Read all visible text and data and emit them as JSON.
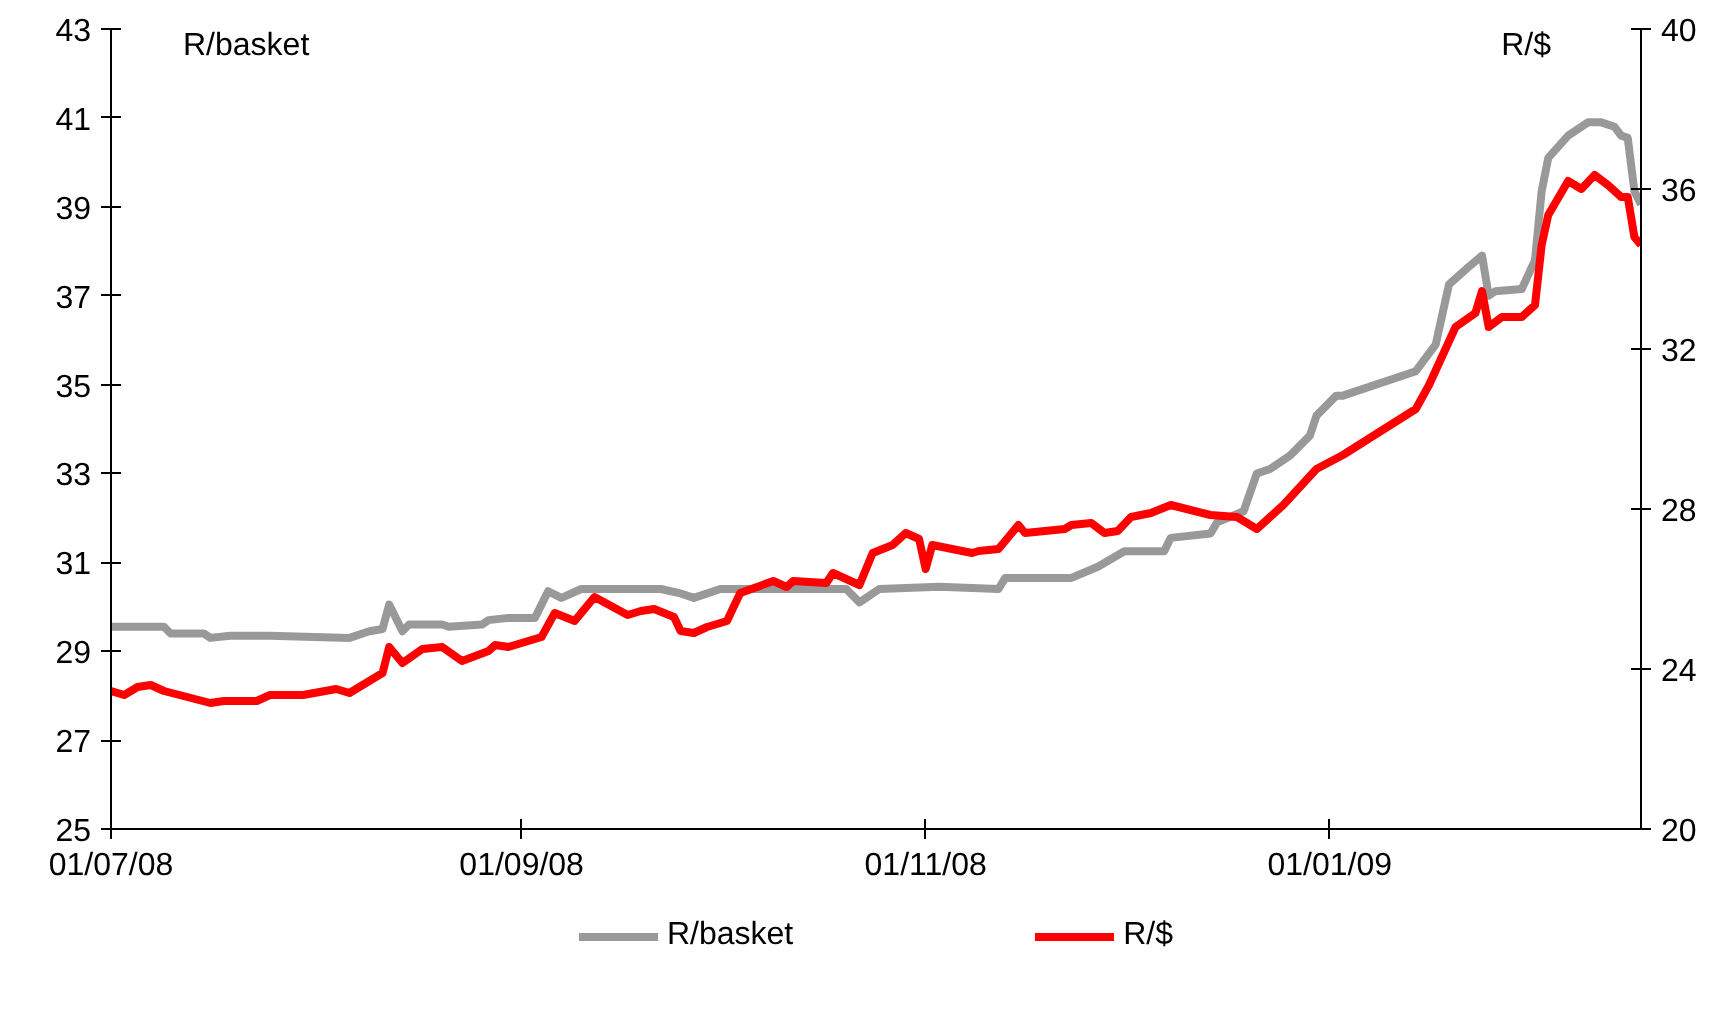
{
  "chart_data": {
    "type": "line",
    "ylabel": "R/basket",
    "y2label": "R/$",
    "xlim": [
      "2008-07-01",
      "2009-02-17"
    ],
    "xticks": [
      {
        "value": "2008-07-01",
        "label": "01/07/08"
      },
      {
        "value": "2008-09-01",
        "label": "01/09/08"
      },
      {
        "value": "2008-11-01",
        "label": "01/11/08"
      },
      {
        "value": "2009-01-01",
        "label": "01/01/09"
      }
    ],
    "ylim": [
      25,
      43
    ],
    "yticks": [
      25,
      27,
      29,
      31,
      33,
      35,
      37,
      39,
      41,
      43
    ],
    "y2lim": [
      20,
      40
    ],
    "y2ticks": [
      20,
      24,
      28,
      32,
      36,
      40
    ],
    "grid": false,
    "legend": "bottom",
    "marker": "none",
    "line_style": "solid",
    "series": [
      {
        "name": "R/basket",
        "color": "#999999",
        "x": [
          "2008-07-01",
          "2008-07-09",
          "2008-07-10",
          "2008-07-15",
          "2008-07-16",
          "2008-07-19",
          "2008-07-25",
          "2008-08-06",
          "2008-08-09",
          "2008-08-11",
          "2008-08-12",
          "2008-08-14",
          "2008-08-15",
          "2008-08-20",
          "2008-08-21",
          "2008-08-26",
          "2008-08-27",
          "2008-08-30",
          "2008-09-03",
          "2008-09-05",
          "2008-09-07",
          "2008-09-10",
          "2008-09-22",
          "2008-09-25",
          "2008-09-27",
          "2008-10-01",
          "2008-10-20",
          "2008-10-22",
          "2008-10-25",
          "2008-11-03",
          "2008-11-12",
          "2008-11-13",
          "2008-11-23",
          "2008-11-27",
          "2008-12-01",
          "2008-12-07",
          "2008-12-08",
          "2008-12-14",
          "2008-12-15",
          "2008-12-19",
          "2008-12-21",
          "2008-12-23",
          "2008-12-26",
          "2008-12-29",
          "2008-12-30",
          "2009-01-02",
          "2009-01-03",
          "2009-01-14",
          "2009-01-16",
          "2009-01-17",
          "2009-01-19",
          "2009-01-22",
          "2009-01-24",
          "2009-01-25",
          "2009-01-26",
          "2009-01-30",
          "2009-02-01",
          "2009-02-02",
          "2009-02-03",
          "2009-02-06",
          "2009-02-09",
          "2009-02-11",
          "2009-02-13",
          "2009-02-14",
          "2009-02-15",
          "2009-02-16",
          "2009-02-17"
        ],
        "values": [
          29.55,
          29.55,
          29.4,
          29.4,
          29.3,
          29.35,
          29.35,
          29.3,
          29.45,
          29.5,
          30.05,
          29.45,
          29.6,
          29.6,
          29.55,
          29.6,
          29.7,
          29.75,
          29.75,
          30.35,
          30.2,
          30.4,
          30.4,
          30.3,
          30.2,
          30.4,
          30.4,
          30.1,
          30.4,
          30.45,
          30.4,
          30.65,
          30.65,
          30.9,
          31.25,
          31.25,
          31.55,
          31.65,
          31.9,
          32.15,
          33.0,
          33.1,
          33.4,
          33.85,
          34.3,
          34.75,
          34.75,
          35.3,
          35.7,
          35.9,
          37.25,
          37.65,
          37.9,
          37.0,
          37.1,
          37.15,
          37.8,
          39.35,
          40.1,
          40.6,
          40.9,
          40.9,
          40.8,
          40.6,
          40.55,
          39.35,
          39.05
        ]
      },
      {
        "name": "R/$",
        "color": "#ff0000",
        "axis": "y2",
        "x": [
          "2008-07-01",
          "2008-07-03",
          "2008-07-05",
          "2008-07-07",
          "2008-07-09",
          "2008-07-16",
          "2008-07-18",
          "2008-07-23",
          "2008-07-25",
          "2008-07-30",
          "2008-08-04",
          "2008-08-06",
          "2008-08-09",
          "2008-08-11",
          "2008-08-12",
          "2008-08-14",
          "2008-08-17",
          "2008-08-20",
          "2008-08-23",
          "2008-08-27",
          "2008-08-28",
          "2008-08-30",
          "2008-09-04",
          "2008-09-06",
          "2008-09-09",
          "2008-09-12",
          "2008-09-17",
          "2008-09-19",
          "2008-09-21",
          "2008-09-24",
          "2008-09-25",
          "2008-09-27",
          "2008-09-29",
          "2008-10-02",
          "2008-10-04",
          "2008-10-09",
          "2008-10-11",
          "2008-10-12",
          "2008-10-17",
          "2008-10-18",
          "2008-10-22",
          "2008-10-24",
          "2008-10-27",
          "2008-10-29",
          "2008-10-31",
          "2008-11-01",
          "2008-11-02",
          "2008-11-08",
          "2008-11-09",
          "2008-11-12",
          "2008-11-15",
          "2008-11-16",
          "2008-11-19",
          "2008-11-22",
          "2008-11-23",
          "2008-11-26",
          "2008-11-28",
          "2008-11-30",
          "2008-12-02",
          "2008-12-05",
          "2008-12-08",
          "2008-12-14",
          "2008-12-18",
          "2008-12-21",
          "2008-12-25",
          "2008-12-30",
          "2009-01-03",
          "2009-01-14",
          "2009-01-16",
          "2009-01-20",
          "2009-01-23",
          "2009-01-24",
          "2009-01-25",
          "2009-01-27",
          "2009-01-30",
          "2009-02-01",
          "2009-02-02",
          "2009-02-03",
          "2009-02-06",
          "2009-02-08",
          "2009-02-10",
          "2009-02-12",
          "2009-02-14",
          "2009-02-15",
          "2009-02-16",
          "2009-02-17"
        ],
        "values": [
          23.45,
          23.35,
          23.55,
          23.6,
          23.45,
          23.15,
          23.2,
          23.2,
          23.35,
          23.35,
          23.5,
          23.4,
          23.7,
          23.9,
          24.55,
          24.15,
          24.5,
          24.55,
          24.2,
          24.45,
          24.6,
          24.55,
          24.8,
          25.4,
          25.2,
          25.8,
          25.35,
          25.45,
          25.5,
          25.3,
          24.95,
          24.9,
          25.05,
          25.2,
          25.9,
          26.2,
          26.05,
          26.2,
          26.15,
          26.4,
          26.1,
          26.9,
          27.1,
          27.4,
          27.25,
          26.5,
          27.1,
          26.9,
          26.95,
          27.0,
          27.6,
          27.4,
          27.45,
          27.5,
          27.6,
          27.65,
          27.4,
          27.45,
          27.8,
          27.9,
          28.1,
          27.85,
          27.8,
          27.5,
          28.1,
          29.0,
          29.35,
          30.5,
          31.1,
          32.55,
          32.9,
          33.45,
          32.55,
          32.8,
          32.8,
          33.1,
          34.6,
          35.35,
          36.2,
          36.0,
          36.35,
          36.1,
          35.8,
          35.8,
          34.8,
          34.6
        ]
      }
    ]
  }
}
